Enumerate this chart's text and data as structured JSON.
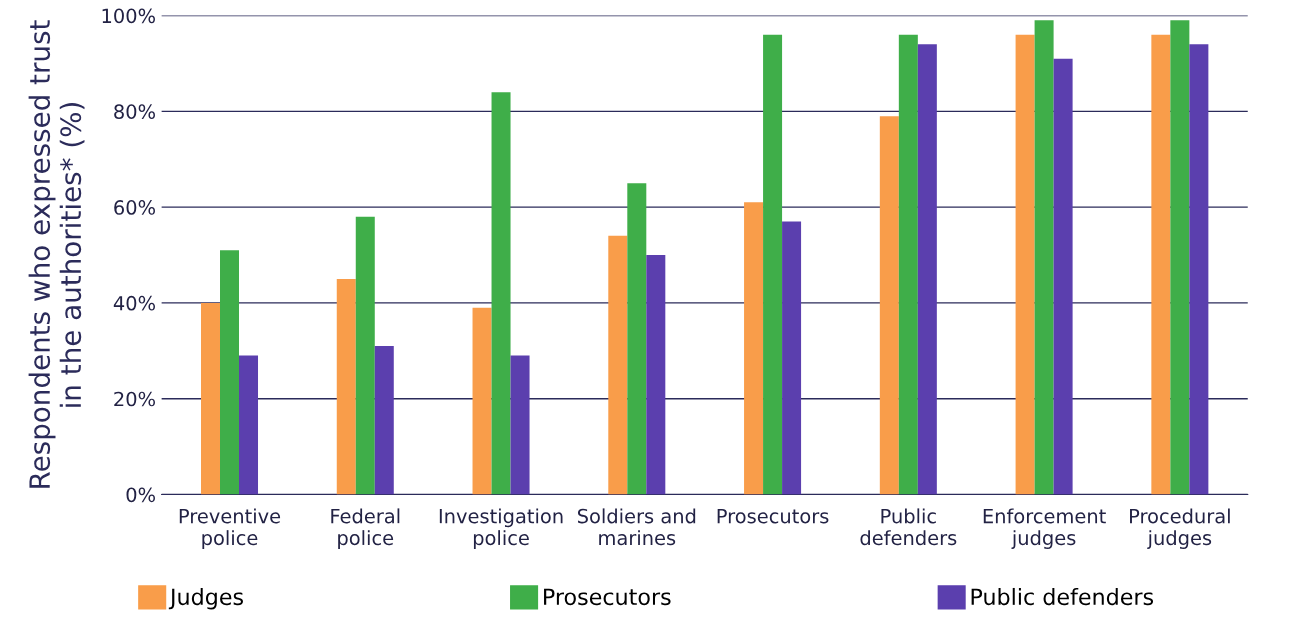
{
  "chart_data": {
    "type": "bar",
    "ylabel": "Respondents who expressed trust\nin the authorities* (%)",
    "categories": [
      "Preventive\npolice",
      "Federal\npolice",
      "Investigation\npolice",
      "Soldiers and\nmarines",
      "Prosecutors",
      "Public\ndefenders",
      "Enforcement\njudges",
      "Procedural\njudges"
    ],
    "series": [
      {
        "name": "Judges",
        "color": "#f99d4a",
        "values": [
          40,
          45,
          39,
          54,
          61,
          79,
          96,
          96
        ]
      },
      {
        "name": "Prosecutors",
        "color": "#3fae49",
        "values": [
          51,
          58,
          84,
          65,
          96,
          96,
          99,
          99
        ]
      },
      {
        "name": "Public defenders",
        "color": "#5b3fae",
        "values": [
          29,
          31,
          29,
          50,
          57,
          94,
          91,
          94
        ]
      }
    ],
    "ylim": [
      0,
      100
    ],
    "yticks": [
      {
        "value": 0,
        "label": "0%"
      },
      {
        "value": 20,
        "label": "20%"
      },
      {
        "value": 40,
        "label": "40%"
      },
      {
        "value": 60,
        "label": "60%"
      },
      {
        "value": 80,
        "label": "80%"
      },
      {
        "value": 100,
        "label": "100%"
      }
    ],
    "grid": "y",
    "legend": "bottom"
  }
}
